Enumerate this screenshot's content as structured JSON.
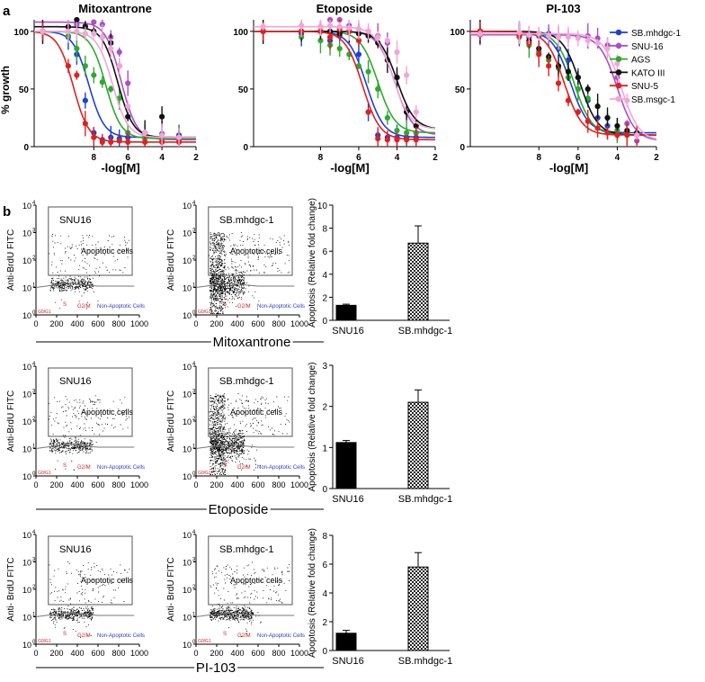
{
  "panel_a_label": "a",
  "panel_b_label": "b",
  "colors": {
    "SB.mhdgc-1": "#1f3fd8",
    "SNU-16": "#a94fc8",
    "AGS": "#2fa82f",
    "KATO III": "#111111",
    "SNU-5": "#e02020",
    "SB.msgc-1": "#f2a6d6",
    "axis": "#000000"
  },
  "legend": {
    "entries": [
      "SB.mhdgc-1",
      "SNU-16",
      "AGS",
      "KATO III",
      "SNU-5",
      "SB.msgc-1"
    ],
    "placement": "right"
  },
  "chart_data": [
    {
      "type": "line",
      "title": "Mitoxantrone",
      "xlabel": "-log[M]",
      "ylabel": "% growth",
      "xlim": [
        11.5,
        2
      ],
      "ylim": [
        0,
        110
      ],
      "xticks": [
        "8",
        "6",
        "4",
        "2"
      ],
      "yticks": [
        "0",
        "50",
        "100"
      ],
      "x": [
        11,
        9.5,
        9,
        8.5,
        8,
        7.5,
        7,
        6.5,
        6,
        5,
        4,
        3
      ],
      "series": [
        {
          "name": "SB.mhdgc-1",
          "ic50": 8.3,
          "top": 100,
          "bottom": 8,
          "values": [
            100,
            95,
            80,
            40,
            12,
            6,
            8,
            7,
            8,
            10,
            11,
            10
          ]
        },
        {
          "name": "SNU-16",
          "ic50": 6.4,
          "top": 108,
          "bottom": 6,
          "values": [
            100,
            104,
            106,
            105,
            108,
            106,
            95,
            82,
            55,
            10,
            6,
            6
          ]
        },
        {
          "name": "AGS",
          "ic50": 7.3,
          "top": 100,
          "bottom": 7,
          "values": [
            100,
            96,
            85,
            70,
            62,
            56,
            50,
            42,
            12,
            7,
            7,
            7
          ]
        },
        {
          "name": "KATO III",
          "ic50": 6.6,
          "top": 104,
          "bottom": 8,
          "values": [
            100,
            104,
            110,
            104,
            100,
            95,
            90,
            70,
            26,
            12,
            26,
            8
          ]
        },
        {
          "name": "SNU-5",
          "ic50": 9.2,
          "top": 100,
          "bottom": 4,
          "values": [
            100,
            70,
            62,
            20,
            8,
            4,
            4,
            5,
            4,
            4,
            4,
            4
          ]
        },
        {
          "name": "SB.msgc-1",
          "ic50": 6.9,
          "top": 100,
          "bottom": 8,
          "values": [
            100,
            100,
            100,
            98,
            98,
            95,
            85,
            70,
            35,
            12,
            10,
            8
          ]
        }
      ]
    },
    {
      "type": "line",
      "title": "Etoposide",
      "xlabel": "-log[M]",
      "ylabel": "",
      "xlim": [
        11.5,
        2
      ],
      "ylim": [
        0,
        110
      ],
      "xticks": [
        "8",
        "6",
        "4",
        "2"
      ],
      "yticks": [
        "0",
        "50",
        "100"
      ],
      "x": [
        11,
        9,
        8,
        7.5,
        7,
        6.5,
        6,
        5.5,
        5,
        4.5,
        4,
        3.5,
        3
      ],
      "series": [
        {
          "name": "SB.mhdgc-1",
          "ic50": 5.6,
          "top": 100,
          "bottom": 8,
          "values": [
            100,
            98,
            100,
            92,
            96,
            100,
            80,
            30,
            10,
            8,
            8,
            8,
            8
          ]
        },
        {
          "name": "SNU-16",
          "ic50": 4.1,
          "top": 100,
          "bottom": 10,
          "values": [
            100,
            100,
            104,
            110,
            115,
            105,
            102,
            100,
            96,
            90,
            60,
            30,
            12
          ]
        },
        {
          "name": "AGS",
          "ic50": 5.0,
          "top": 100,
          "bottom": 12,
          "values": [
            100,
            95,
            92,
            88,
            85,
            80,
            70,
            65,
            50,
            25,
            14,
            12,
            12
          ]
        },
        {
          "name": "KATO III",
          "ic50": 4.0,
          "top": 100,
          "bottom": 15,
          "values": [
            100,
            100,
            100,
            100,
            98,
            100,
            98,
            96,
            90,
            75,
            60,
            30,
            18
          ]
        },
        {
          "name": "SNU-5",
          "ic50": 5.8,
          "top": 100,
          "bottom": 6,
          "values": [
            100,
            100,
            100,
            95,
            102,
            100,
            92,
            30,
            7,
            6,
            6,
            6,
            6
          ]
        },
        {
          "name": "SB.msgc-1",
          "ic50": 4.2,
          "top": 104,
          "bottom": 15,
          "values": [
            104,
            105,
            104,
            105,
            104,
            103,
            102,
            100,
            95,
            92,
            82,
            62,
            30
          ]
        }
      ]
    },
    {
      "type": "line",
      "title": "PI-103",
      "xlabel": "-log[M]",
      "ylabel": "",
      "xlim": [
        11.5,
        2
      ],
      "ylim": [
        0,
        110
      ],
      "xticks": [
        "8",
        "6",
        "4",
        "2"
      ],
      "yticks": [
        "0",
        "50",
        "100"
      ],
      "x": [
        11,
        9,
        8.5,
        8,
        7.5,
        7,
        6.5,
        6,
        5.5,
        5,
        4.5,
        4,
        3.5,
        3
      ],
      "series": [
        {
          "name": "SB.mhdgc-1",
          "ic50": 6.4,
          "top": 100,
          "bottom": 12,
          "values": [
            100,
            98,
            95,
            96,
            98,
            85,
            75,
            60,
            40,
            25,
            18,
            14,
            13,
            12
          ]
        },
        {
          "name": "SNU-16",
          "ic50": 4.0,
          "top": 97,
          "bottom": 5,
          "values": [
            97,
            98,
            96,
            98,
            96,
            96,
            96,
            95,
            96,
            94,
            88,
            60,
            20,
            5
          ]
        },
        {
          "name": "AGS",
          "ic50": 6.2,
          "top": 100,
          "bottom": 10,
          "values": [
            100,
            95,
            88,
            82,
            75,
            68,
            60,
            50,
            42,
            35,
            25,
            14,
            12,
            10
          ]
        },
        {
          "name": "KATO III",
          "ic50": 5.9,
          "top": 100,
          "bottom": 10,
          "values": [
            100,
            98,
            92,
            85,
            78,
            70,
            65,
            60,
            50,
            35,
            25,
            18,
            14,
            12
          ]
        },
        {
          "name": "SNU-5",
          "ic50": 6.7,
          "top": 100,
          "bottom": 10,
          "values": [
            100,
            96,
            90,
            80,
            70,
            55,
            40,
            30,
            22,
            16,
            12,
            10,
            10,
            10
          ]
        },
        {
          "name": "SB.msgc-1",
          "ic50": 3.8,
          "top": 98,
          "bottom": 5,
          "values": [
            98,
            99,
            97,
            98,
            96,
            95,
            95,
            94,
            92,
            90,
            85,
            72,
            40,
            10
          ]
        }
      ]
    },
    {
      "type": "bar",
      "title": "",
      "xlabel": "",
      "ylabel": "Apoptosis (Relative fold change)",
      "categories": [
        "SNU16",
        "SB.mhdgc-1"
      ],
      "values": [
        1.3,
        6.7
      ],
      "errors": [
        0.1,
        1.5
      ],
      "ylim": [
        0,
        10
      ],
      "yticks": [
        "0",
        "2",
        "4",
        "6",
        "8",
        "10"
      ]
    },
    {
      "type": "bar",
      "title": "",
      "xlabel": "",
      "ylabel": "Apoptosis (Relative fold change)",
      "categories": [
        "SNU16",
        "SB.mhdgc-1"
      ],
      "values": [
        1.12,
        2.1
      ],
      "errors": [
        0.05,
        0.3
      ],
      "ylim": [
        0,
        3
      ],
      "yticks": [
        "0",
        "1",
        "2",
        "3"
      ]
    },
    {
      "type": "bar",
      "title": "",
      "xlabel": "",
      "ylabel": "Apoptosis (Relative fold change)",
      "categories": [
        "SNU16",
        "SB.mhdgc-1"
      ],
      "values": [
        1.2,
        5.8
      ],
      "errors": [
        0.2,
        1.0
      ],
      "ylim": [
        0,
        8
      ],
      "yticks": [
        "0",
        "2",
        "4",
        "6",
        "8"
      ]
    },
    {
      "type": "scatter",
      "title": "SNU16",
      "drug": "Mitoxantrone",
      "xlabel": "",
      "ylabel": "Anti-BrdU FITC",
      "xlim": [
        0,
        1000
      ],
      "ylim_log": [
        0,
        4
      ],
      "xticks": [
        "0",
        "200",
        "400",
        "600",
        "800",
        "1000"
      ],
      "yticks": [
        "0",
        "1",
        "2",
        "3",
        "4"
      ],
      "gate_labels": {
        "apoptotic": "Apoptotic cells",
        "g0g1": "G0/G1",
        "s": "S",
        "g2m": "G2/M",
        "non_apoptotic": "Non-Apoptotic   Cells"
      },
      "density": "low"
    },
    {
      "type": "scatter",
      "title": "SB.mhdgc-1",
      "drug": "Mitoxantrone",
      "xlabel": "",
      "ylabel": "Anti-BrdU FITC",
      "xlim": [
        0,
        1000
      ],
      "ylim_log": [
        0,
        4
      ],
      "xticks": [
        "0",
        "200",
        "400",
        "600",
        "800",
        "1000"
      ],
      "yticks": [
        "0",
        "1",
        "2",
        "3",
        "4"
      ],
      "gate_labels": {
        "apoptotic": "Apoptotic cells",
        "g0g1": "G0/G1",
        "s": "S",
        "g2m": "G2/M",
        "non_apoptotic": "Non-Apoptotic   Cells"
      },
      "density": "high"
    },
    {
      "type": "scatter",
      "title": "SNU16",
      "drug": "Etoposide",
      "xlabel": "",
      "ylabel": "Anti-BrdU FITC",
      "xlim": [
        0,
        1000
      ],
      "ylim_log": [
        0,
        4
      ],
      "xticks": [
        "0",
        "200",
        "400",
        "600",
        "800",
        "1000"
      ],
      "yticks": [
        "0",
        "1",
        "2",
        "3",
        "4"
      ],
      "gate_labels": {
        "apoptotic": "Apoptotic cells",
        "g0g1": "G0/G1",
        "s": "S",
        "g2m": "G2/M",
        "non_apoptotic": "Non-Apoptotic   Cells"
      },
      "density": "low"
    },
    {
      "type": "scatter",
      "title": "SB.mhdgc-1",
      "drug": "Etoposide",
      "xlabel": "",
      "ylabel": "Anti-BrdU FITC",
      "xlim": [
        0,
        1000
      ],
      "ylim_log": [
        0,
        4
      ],
      "xticks": [
        "0",
        "200",
        "400",
        "600",
        "800",
        "1000"
      ],
      "yticks": [
        "0",
        "1",
        "2",
        "3",
        "4"
      ],
      "gate_labels": {
        "apoptotic": "Apoptotic cells",
        "g0g1": "G0/G1",
        "s": "S",
        "g2m": "G2/M",
        "non_apoptotic": "Non-Apoptotic   Cells"
      },
      "density": "high"
    },
    {
      "type": "scatter",
      "title": "SNU16",
      "drug": "PI-103",
      "xlabel": "",
      "ylabel": "Anti- BrdU FITC",
      "xlim": [
        0,
        1000
      ],
      "ylim_log": [
        0,
        4
      ],
      "xticks": [
        "0",
        "200",
        "400",
        "600",
        "800",
        "1000"
      ],
      "yticks": [
        "0",
        "1",
        "2",
        "3",
        "4"
      ],
      "gate_labels": {
        "apoptotic": "Apoptotic cells",
        "g0g1": "G0/G1",
        "s": "S",
        "g2m": "G2/M",
        "non_apoptotic": "Non-Apoptotic   Cells"
      },
      "density": "low"
    },
    {
      "type": "scatter",
      "title": "SB.mhdgc-1",
      "drug": "PI-103",
      "xlabel": "",
      "ylabel": "Anti- BrdU FITC",
      "xlim": [
        0,
        1000
      ],
      "ylim_log": [
        0,
        4
      ],
      "xticks": [
        "0",
        "200",
        "400",
        "600",
        "800",
        "1000"
      ],
      "yticks": [
        "0",
        "1",
        "2",
        "3",
        "4"
      ],
      "gate_labels": {
        "apoptotic": "Apoptotic cells",
        "g0g1": "G0/G1",
        "s": "S",
        "g2m": "G2/M",
        "non_apoptotic": "Non-Apoptotic   Cells"
      },
      "density": "medium"
    }
  ],
  "row_labels": [
    "Mitoxantrone",
    "Etoposide",
    "PI-103"
  ]
}
